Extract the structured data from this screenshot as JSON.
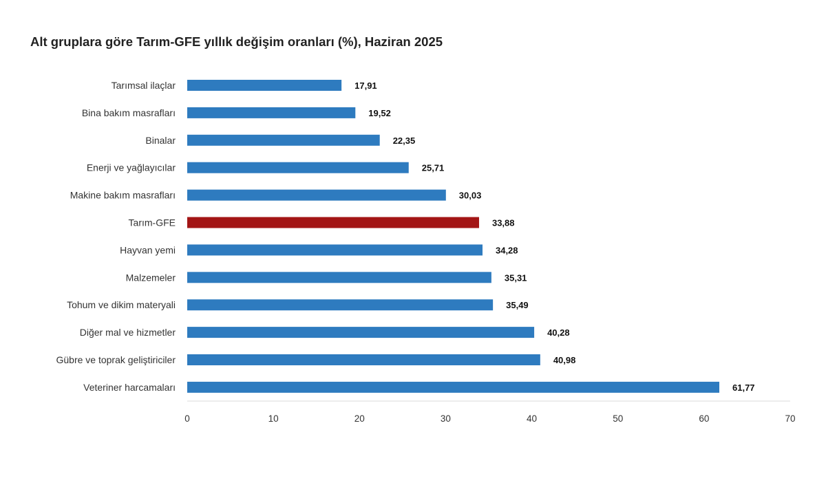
{
  "chart_data": {
    "type": "bar",
    "orientation": "horizontal",
    "title": "Alt gruplara göre Tarım-GFE yıllık değişim oranları (%), Haziran 2025",
    "categories": [
      "Tarımsal ilaçlar",
      "Bina bakım masrafları",
      "Binalar",
      "Enerji  ve yağlayıcılar",
      "Makine bakım masrafları",
      "Tarım-GFE",
      "Hayvan yemi",
      "Malzemeler",
      "Tohum ve dikim materyali",
      "Diğer mal ve hizmetler",
      "Gübre ve toprak geliştiriciler",
      "Veteriner harcamaları"
    ],
    "values": [
      17.91,
      19.52,
      22.35,
      25.71,
      30.03,
      33.88,
      34.28,
      35.31,
      35.49,
      40.28,
      40.98,
      61.77
    ],
    "value_labels": [
      "17,91",
      "19,52",
      "22,35",
      "25,71",
      "30,03",
      "33,88",
      "34,28",
      "35,31",
      "35,49",
      "40,28",
      "40,98",
      "61,77"
    ],
    "xlim": [
      0,
      70
    ],
    "xticks": [
      0,
      10,
      20,
      30,
      40,
      50,
      60,
      70
    ],
    "xtick_labels": [
      "0",
      "10",
      "20",
      "30",
      "40",
      "50",
      "60",
      "70"
    ],
    "xlabel": "",
    "ylabel": "",
    "grid": false,
    "legend": "none",
    "highlight_category": "Tarım-GFE",
    "colors": {
      "default": "#2e7bbf",
      "highlight": "#a31515",
      "axis": "#d9d9d9"
    }
  }
}
